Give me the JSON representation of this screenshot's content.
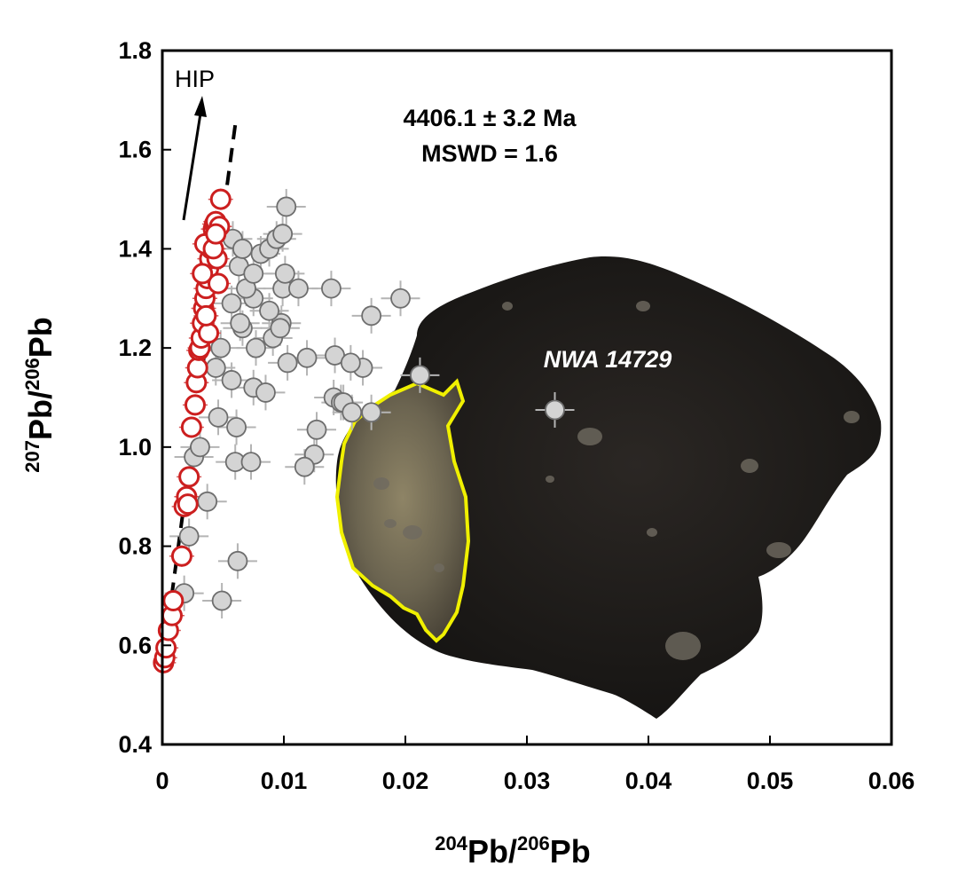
{
  "chart_data": {
    "type": "scatter",
    "title": "",
    "xlabel": {
      "mass_a": "204",
      "elem_a": "Pb/",
      "mass_b": "206",
      "elem_b": "Pb"
    },
    "ylabel": {
      "mass_a": "207",
      "elem_a": "Pb/",
      "mass_b": "206",
      "elem_b": "Pb"
    },
    "xlim": [
      0,
      0.06
    ],
    "ylim": [
      0.4,
      1.8
    ],
    "xticks": [
      "0",
      "0.01",
      "0.02",
      "0.03",
      "0.04",
      "0.05",
      "0.06"
    ],
    "yticks": [
      "0.4",
      "0.6",
      "0.8",
      "1.0",
      "1.2",
      "1.4",
      "1.6",
      "1.8"
    ],
    "grid": false,
    "annotations": {
      "age": "4406.1 ± 3.2 Ma",
      "mswd": "MSWD = 1.6",
      "hip": "HIP",
      "sample": "NWA 14729"
    },
    "colors": {
      "isochron_points": "#cc1f1f",
      "excluded_points": "#d4d4d4",
      "inset_outline": "#f0f000",
      "inset_rock": "#1c1a18"
    },
    "isochron_line": {
      "style": "dashed",
      "x": [
        0,
        0.006
      ],
      "y": [
        0.56,
        1.65
      ]
    },
    "series": [
      {
        "style": "red-open",
        "points": [
          [
            0.0001,
            0.565
          ],
          [
            0.0002,
            0.575
          ],
          [
            0.0003,
            0.595
          ],
          [
            0.0005,
            0.63
          ],
          [
            0.0008,
            0.66
          ],
          [
            0.0009,
            0.69
          ],
          [
            0.0016,
            0.78
          ],
          [
            0.0018,
            0.88
          ],
          [
            0.002,
            0.9
          ],
          [
            0.0021,
            0.885
          ],
          [
            0.0022,
            0.94
          ],
          [
            0.0024,
            1.04
          ],
          [
            0.0027,
            1.085
          ],
          [
            0.0028,
            1.13
          ],
          [
            0.0029,
            1.16
          ],
          [
            0.003,
            1.195
          ],
          [
            0.0031,
            1.2
          ],
          [
            0.0032,
            1.22
          ],
          [
            0.0033,
            1.25
          ],
          [
            0.0034,
            1.28
          ],
          [
            0.0035,
            1.3
          ],
          [
            0.0036,
            1.32
          ],
          [
            0.0037,
            1.34
          ],
          [
            0.0038,
            1.36
          ],
          [
            0.0039,
            1.38
          ],
          [
            0.004,
            1.4
          ],
          [
            0.0041,
            1.42
          ],
          [
            0.0042,
            1.44
          ],
          [
            0.0043,
            1.45
          ],
          [
            0.0044,
            1.455
          ],
          [
            0.0038,
            1.23
          ],
          [
            0.0045,
            1.38
          ],
          [
            0.0046,
            1.33
          ],
          [
            0.0047,
            1.445
          ],
          [
            0.0048,
            1.5
          ],
          [
            0.0035,
            1.41
          ],
          [
            0.0036,
            1.265
          ],
          [
            0.0033,
            1.35
          ],
          [
            0.0042,
            1.4
          ],
          [
            0.0044,
            1.43
          ]
        ]
      },
      {
        "style": "grey-filled",
        "points": [
          [
            0.0018,
            0.705
          ],
          [
            0.0022,
            0.82
          ],
          [
            0.0037,
            0.89
          ],
          [
            0.0026,
            0.98
          ],
          [
            0.0031,
            1.0
          ],
          [
            0.0046,
            1.06
          ],
          [
            0.0061,
            1.04
          ],
          [
            0.006,
            0.97
          ],
          [
            0.0073,
            0.97
          ],
          [
            0.0062,
            0.77
          ],
          [
            0.0049,
            0.69
          ],
          [
            0.0057,
            1.135
          ],
          [
            0.0075,
            1.12
          ],
          [
            0.0085,
            1.11
          ],
          [
            0.0044,
            1.16
          ],
          [
            0.0048,
            1.2
          ],
          [
            0.0066,
            1.24
          ],
          [
            0.0077,
            1.2
          ],
          [
            0.0091,
            1.22
          ],
          [
            0.0098,
            1.25
          ],
          [
            0.0103,
            1.17
          ],
          [
            0.0119,
            1.18
          ],
          [
            0.0057,
            1.29
          ],
          [
            0.0064,
            1.25
          ],
          [
            0.0075,
            1.3
          ],
          [
            0.0088,
            1.275
          ],
          [
            0.0099,
            1.32
          ],
          [
            0.0112,
            1.32
          ],
          [
            0.0063,
            1.365
          ],
          [
            0.0069,
            1.32
          ],
          [
            0.0075,
            1.35
          ],
          [
            0.0081,
            1.39
          ],
          [
            0.0088,
            1.4
          ],
          [
            0.0094,
            1.42
          ],
          [
            0.0099,
            1.43
          ],
          [
            0.0101,
            1.35
          ],
          [
            0.0097,
            1.24
          ],
          [
            0.0058,
            1.42
          ],
          [
            0.0066,
            1.4
          ],
          [
            0.0102,
            1.485
          ],
          [
            0.0139,
            1.32
          ],
          [
            0.0172,
            1.265
          ],
          [
            0.0196,
            1.3
          ],
          [
            0.0142,
            1.185
          ],
          [
            0.0165,
            1.16
          ],
          [
            0.0155,
            1.17
          ],
          [
            0.0141,
            1.1
          ],
          [
            0.0147,
            1.09
          ],
          [
            0.0149,
            1.09
          ],
          [
            0.0156,
            1.07
          ],
          [
            0.0172,
            1.07
          ],
          [
            0.0127,
            1.035
          ],
          [
            0.0125,
            0.985
          ],
          [
            0.0117,
            0.96
          ],
          [
            0.0212,
            1.145
          ],
          [
            0.0323,
            1.075
          ]
        ]
      }
    ]
  }
}
